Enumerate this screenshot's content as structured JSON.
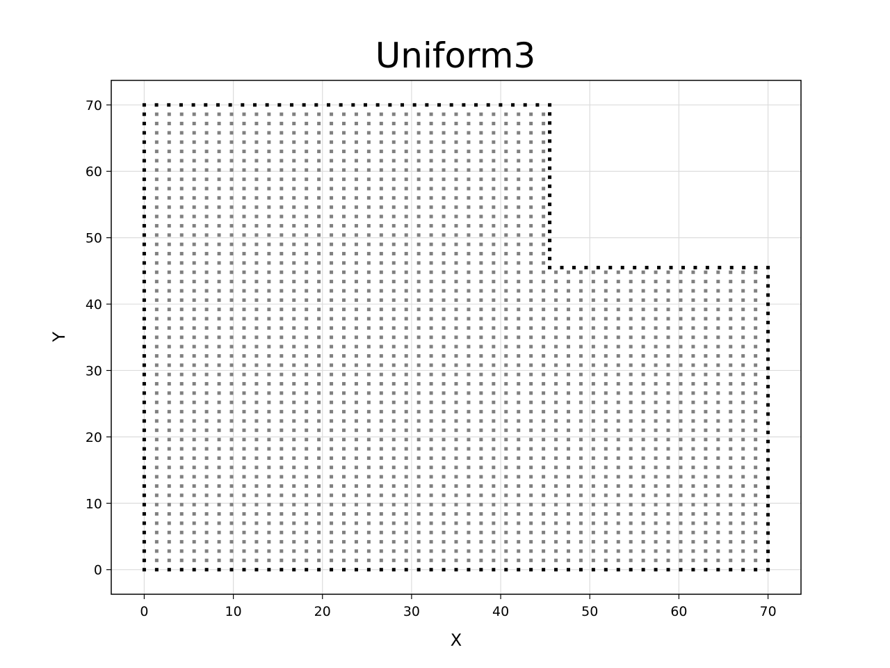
{
  "chart_data": {
    "type": "scatter",
    "title": "Uniform3",
    "xlabel": "X",
    "ylabel": "Y",
    "xlim": [
      -3.7,
      73.7
    ],
    "ylim": [
      -3.7,
      73.7
    ],
    "xticks": [
      0,
      10,
      20,
      30,
      40,
      50,
      60,
      70
    ],
    "yticks": [
      0,
      10,
      20,
      30,
      40,
      50,
      60,
      70
    ],
    "grid": true,
    "grid_spacing": 1.4,
    "series": [
      {
        "role": "interior",
        "description": "uniform grid of points covering the L-shaped domain, spacing 1.4",
        "x_range": [
          0,
          70
        ],
        "y_range": [
          0,
          70
        ],
        "excluded_region": {
          "x": [
            45.5,
            70
          ],
          "y": [
            45.5,
            70
          ]
        },
        "color": "#808080"
      },
      {
        "role": "boundary",
        "description": "points along the L-shaped boundary, spacing 1.4",
        "vertices": [
          [
            0,
            0
          ],
          [
            70,
            0
          ],
          [
            70,
            45.5
          ],
          [
            45.5,
            45.5
          ],
          [
            45.5,
            70
          ],
          [
            0,
            70
          ],
          [
            0,
            0
          ]
        ],
        "color": "#000000"
      }
    ]
  }
}
